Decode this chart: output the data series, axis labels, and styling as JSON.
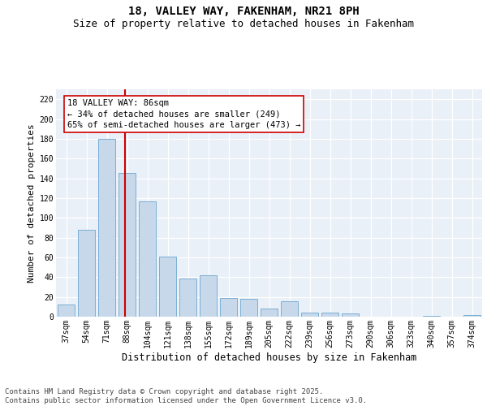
{
  "title": "18, VALLEY WAY, FAKENHAM, NR21 8PH",
  "subtitle": "Size of property relative to detached houses in Fakenham",
  "xlabel": "Distribution of detached houses by size in Fakenham",
  "ylabel": "Number of detached properties",
  "categories": [
    "37sqm",
    "54sqm",
    "71sqm",
    "88sqm",
    "104sqm",
    "121sqm",
    "138sqm",
    "155sqm",
    "172sqm",
    "189sqm",
    "205sqm",
    "222sqm",
    "239sqm",
    "256sqm",
    "273sqm",
    "290sqm",
    "306sqm",
    "323sqm",
    "340sqm",
    "357sqm",
    "374sqm"
  ],
  "values": [
    12,
    88,
    180,
    145,
    117,
    61,
    39,
    42,
    19,
    18,
    8,
    16,
    4,
    4,
    3,
    0,
    0,
    0,
    1,
    0,
    2
  ],
  "bar_color": "#c8d8eb",
  "bar_edge_color": "#7aafd4",
  "vline_position": 2.88,
  "vline_color": "#cc0000",
  "annotation_text": "18 VALLEY WAY: 86sqm\n← 34% of detached houses are smaller (249)\n65% of semi-detached houses are larger (473) →",
  "annotation_box_facecolor": "#ffffff",
  "annotation_box_edgecolor": "#cc0000",
  "ylim": [
    0,
    230
  ],
  "yticks": [
    0,
    20,
    40,
    60,
    80,
    100,
    120,
    140,
    160,
    180,
    200,
    220
  ],
  "bg_color": "#eaf0f8",
  "footer": "Contains HM Land Registry data © Crown copyright and database right 2025.\nContains public sector information licensed under the Open Government Licence v3.0.",
  "title_fontsize": 10,
  "subtitle_fontsize": 9,
  "ylabel_fontsize": 8,
  "xlabel_fontsize": 8.5,
  "annotation_fontsize": 7.5,
  "footer_fontsize": 6.5,
  "tick_fontsize": 7
}
